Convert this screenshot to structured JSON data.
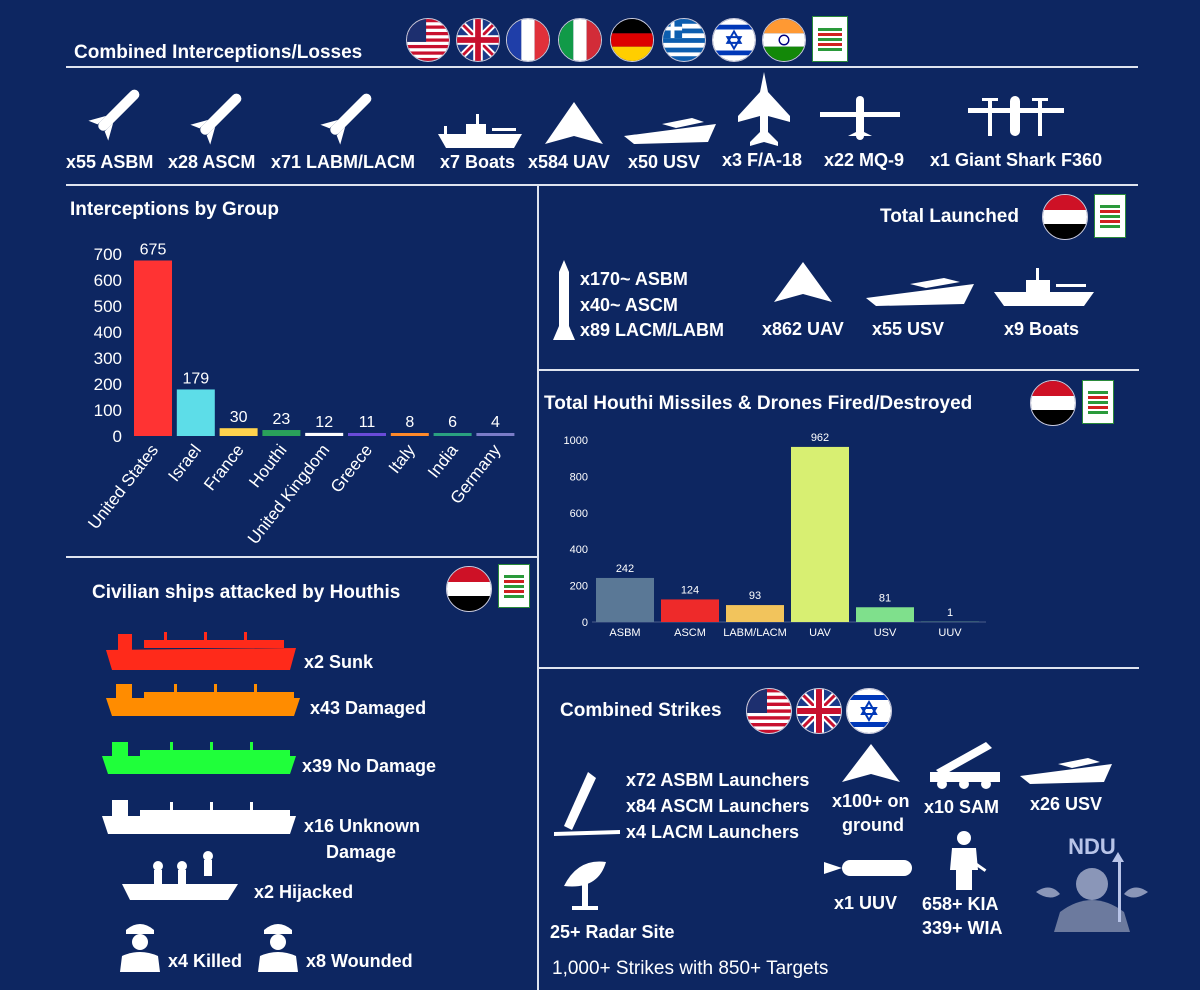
{
  "losses": {
    "title": "Combined Interceptions/Losses",
    "items": [
      {
        "label": "x55 ASBM",
        "icon": "missile-icon"
      },
      {
        "label": "x28 ASCM",
        "icon": "missile-icon"
      },
      {
        "label": "x71 LABM/LACM",
        "icon": "missile-icon"
      },
      {
        "label": "x7 Boats",
        "icon": "gunboat-icon"
      },
      {
        "label": "x584 UAV",
        "icon": "drone-icon"
      },
      {
        "label": "x50 USV",
        "icon": "speedboat-icon"
      },
      {
        "label": "x3 F/A-18",
        "icon": "fighter-jet-icon"
      },
      {
        "label": "x22 MQ-9",
        "icon": "mq9-drone-icon"
      },
      {
        "label": "x1 Giant Shark F360",
        "icon": "vtol-drone-icon"
      }
    ]
  },
  "launched": {
    "title": "Total Launched",
    "missiles": [
      "x170~ ASBM",
      "x40~ ASCM",
      "x89 LACM/LABM"
    ],
    "uav": "x862 UAV",
    "usv": "x55 USV",
    "boats": "x9 Boats"
  },
  "civilian": {
    "title": "Civilian ships attacked by Houthis",
    "ships": [
      {
        "label": "x2 Sunk",
        "color": "#ff2a1a"
      },
      {
        "label": "x43 Damaged",
        "color": "#ff8c00"
      },
      {
        "label": "x39 No Damage",
        "color": "#1fff3a"
      },
      {
        "label": "x16 Unknown",
        "label2": "Damage",
        "color": "#ffffff"
      }
    ],
    "hijacked": "x2 Hijacked",
    "killed": "x4 Killed",
    "wounded": "x8 Wounded"
  },
  "strikes": {
    "title": "Combined Strikes",
    "launchers": [
      "x72 ASBM Launchers",
      "x84 ASCM Launchers",
      "x4 LACM Launchers"
    ],
    "ground1": "x100+ on",
    "ground2": "ground",
    "sam": "x10 SAM",
    "usv": "x26 USV",
    "uuv": "x1 UUV",
    "kia": "658+ KIA",
    "wia": "339+ WIA",
    "radar": "25+ Radar Site",
    "summary": "1,000+ Strikes with 850+ Targets",
    "logo_text": "NDU"
  },
  "chart_data": [
    {
      "type": "bar",
      "title": "Interceptions by Group",
      "categories": [
        "United States",
        "Israel",
        "France",
        "Houthi",
        "United Kingdom",
        "Greece",
        "Italy",
        "India",
        "Germany"
      ],
      "values": [
        675,
        179,
        30,
        23,
        12,
        11,
        8,
        6,
        4
      ],
      "colors": [
        "#ff3333",
        "#5ddde8",
        "#ffd34d",
        "#2aa15a",
        "#ffffff",
        "#6a4bd8",
        "#ff8a2a",
        "#2aa180",
        "#7a7cc8"
      ],
      "yticks": [
        0,
        100,
        200,
        300,
        400,
        500,
        600,
        700
      ],
      "ylim": [
        0,
        700
      ],
      "xlabel": "",
      "ylabel": ""
    },
    {
      "type": "bar",
      "title": "Total Houthi Missiles & Drones Fired/Destroyed",
      "categories": [
        "ASBM",
        "ASCM",
        "LABM/LACM",
        "UAV",
        "USV",
        "UUV"
      ],
      "values": [
        242,
        124,
        93,
        962,
        81,
        1
      ],
      "colors": [
        "#5a7896",
        "#ee2a2a",
        "#f2c45c",
        "#d8ef72",
        "#7fe08c",
        "#7fe08c"
      ],
      "yticks": [
        0,
        200,
        400,
        600,
        800,
        1000
      ],
      "ylim": [
        0,
        1000
      ],
      "xlabel": "",
      "ylabel": ""
    }
  ]
}
